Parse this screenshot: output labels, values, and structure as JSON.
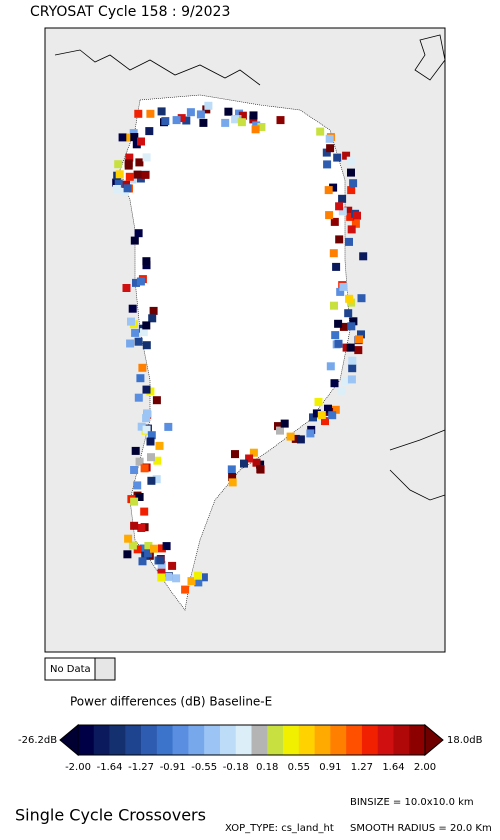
{
  "header": {
    "title": "CRYOSAT Cycle 158 : 9/2023"
  },
  "legend": {
    "no_data": "No Data"
  },
  "colorbar": {
    "title": "Power differences (dB) Baseline-E",
    "min_label": "-26.2dB",
    "max_label": "18.0dB",
    "tick_labels": [
      "-2.00",
      "-1.64",
      "-1.27",
      "-0.91",
      "-0.55",
      "-0.18",
      "0.18",
      "0.55",
      "0.91",
      "1.27",
      "1.64",
      "2.00"
    ],
    "colors": [
      "#000046",
      "#0a1a5c",
      "#14306e",
      "#1e4490",
      "#2e5cb0",
      "#3c74cc",
      "#5a8ee0",
      "#78a8ec",
      "#9cc4f4",
      "#bcdcf8",
      "#dceef8",
      "#b4b4b4",
      "#c8e040",
      "#f0f000",
      "#ffd200",
      "#ffaa00",
      "#ff8000",
      "#ff5000",
      "#f02000",
      "#d01010",
      "#b00808",
      "#8c0000"
    ],
    "under_color": "#000032",
    "over_color": "#6e0000"
  },
  "footer": {
    "caption": "Single Cycle Crossovers",
    "binsize": "BINSIZE = 10.0x10.0 km",
    "xop_type": "XOP_TYPE: cs_land_ht",
    "smooth_radius": "SMOOTH RADIUS = 20.0 Km"
  }
}
